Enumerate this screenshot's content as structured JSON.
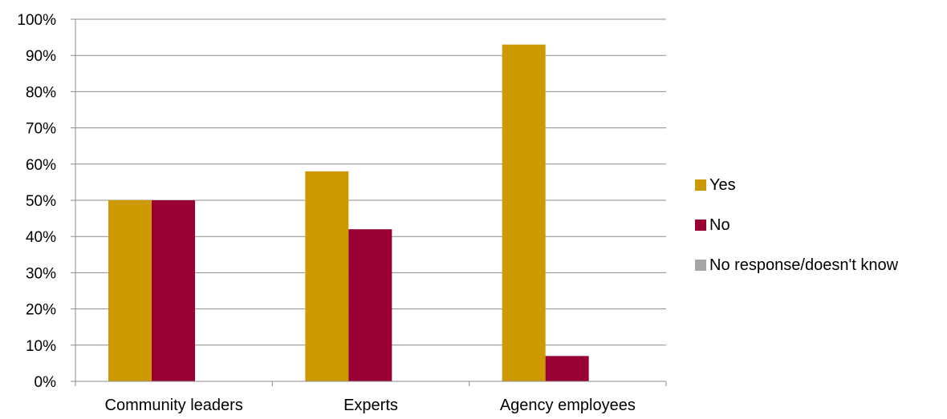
{
  "chart_data": {
    "type": "bar",
    "categories": [
      "Community leaders",
      "Experts",
      "Agency employees"
    ],
    "series": [
      {
        "name": "Yes",
        "values": [
          50,
          58,
          93
        ],
        "color": "#CC9900"
      },
      {
        "name": "No",
        "values": [
          50,
          42,
          7
        ],
        "color": "#990033"
      },
      {
        "name": "No response/doesn't know",
        "values": [
          0,
          0,
          0
        ],
        "color": "#A6A6A6"
      }
    ],
    "ylim": [
      0,
      100
    ],
    "y_ticks": [
      "0%",
      "10%",
      "20%",
      "30%",
      "40%",
      "50%",
      "60%",
      "70%",
      "80%",
      "90%",
      "100%"
    ],
    "grid": true,
    "legend_position": "right"
  }
}
